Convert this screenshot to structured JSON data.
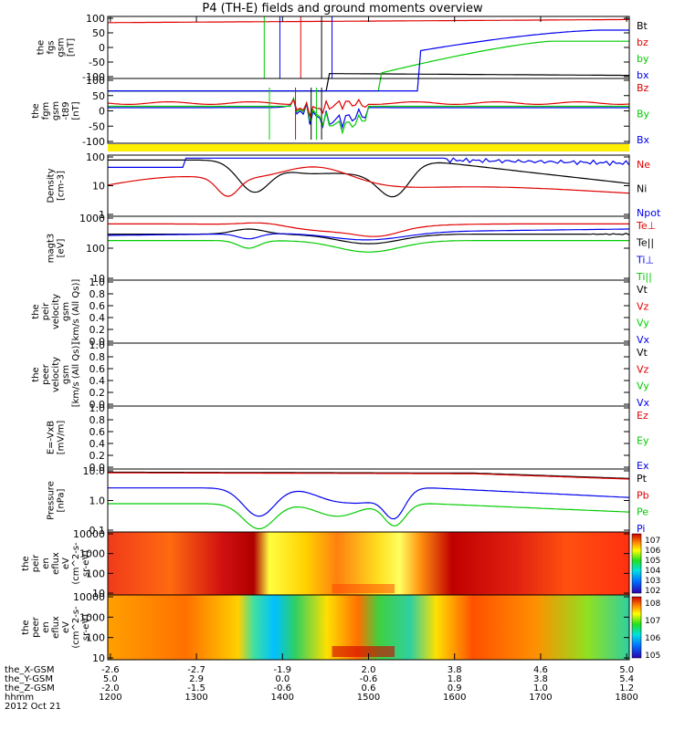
{
  "title": "P4 (TH-E) fields and ground moments overview",
  "colors": {
    "black": "#000000",
    "red": "#e00000",
    "green": "#00cc00",
    "blue": "#0000ee",
    "yellow": "#ffee00"
  },
  "chart_data": [
    {
      "type": "line",
      "panel": "fgs",
      "ylabel": [
        "the",
        "fgs",
        "gsm",
        "[nT]"
      ],
      "yticks": [
        "100",
        "50",
        "0",
        "-50",
        "-100"
      ],
      "ylim": [
        -100,
        100
      ],
      "legend": [
        {
          "label": "Bt",
          "color": "black"
        },
        {
          "label": "bz",
          "color": "red"
        },
        {
          "label": "by",
          "color": "green"
        },
        {
          "label": "bx",
          "color": "blue"
        }
      ]
    },
    {
      "type": "line",
      "panel": "fgm",
      "ylabel": [
        "the",
        "fgm",
        "gsm",
        "-t89",
        "[nT]"
      ],
      "yticks": [
        "100",
        "50",
        "0",
        "-50",
        "-100"
      ],
      "ylim": [
        -130,
        110
      ],
      "legend": [
        {
          "label": "Bz",
          "color": "red"
        },
        {
          "label": "By",
          "color": "green"
        },
        {
          "label": "Bx",
          "color": "blue"
        }
      ]
    },
    {
      "type": "line",
      "panel": "density",
      "ylabel": [
        "Density",
        "[cm-3]"
      ],
      "yticks": [
        "100",
        "10",
        "1"
      ],
      "legend": [
        {
          "label": "Ne",
          "color": "red"
        },
        {
          "label": "Ni",
          "color": "black"
        },
        {
          "label": "Npot",
          "color": "blue"
        }
      ]
    },
    {
      "type": "line",
      "panel": "temperature",
      "ylabel": [
        "magt3",
        "[eV]"
      ],
      "yticks": [
        "1000",
        "100",
        "10"
      ],
      "legend": [
        {
          "label": "Te⊥",
          "color": "red"
        },
        {
          "label": "Te||",
          "color": "black"
        },
        {
          "label": "Ti⊥",
          "color": "blue"
        },
        {
          "label": "Ti||",
          "color": "green"
        }
      ]
    },
    {
      "type": "line",
      "panel": "peir_velocity",
      "ylabel": [
        "the",
        "peir",
        "velocity",
        "gsm",
        "[km/s (All Qs)]"
      ],
      "yticks": [
        "1.0",
        "0.8",
        "0.6",
        "0.4",
        "0.2",
        "0.0"
      ],
      "legend": [
        {
          "label": "Vt",
          "color": "black"
        },
        {
          "label": "Vz",
          "color": "red"
        },
        {
          "label": "Vy",
          "color": "green"
        },
        {
          "label": "Vx",
          "color": "blue"
        }
      ]
    },
    {
      "type": "line",
      "panel": "peer_velocity",
      "ylabel": [
        "the",
        "peer",
        "velocity",
        "gsm",
        "[km/s (All Qs)]"
      ],
      "yticks": [
        "1.0",
        "0.8",
        "0.6",
        "0.4",
        "0.2",
        "0.0"
      ],
      "legend": [
        {
          "label": "Vt",
          "color": "black"
        },
        {
          "label": "Vz",
          "color": "red"
        },
        {
          "label": "Vy",
          "color": "green"
        },
        {
          "label": "Vx",
          "color": "blue"
        }
      ]
    },
    {
      "type": "line",
      "panel": "efield",
      "ylabel": [
        "E=-VxB",
        "[mV/m]"
      ],
      "yticks": [
        "1.0",
        "0.8",
        "0.6",
        "0.4",
        "0.2",
        "0.0"
      ],
      "legend": [
        {
          "label": "Ez",
          "color": "red"
        },
        {
          "label": "Ey",
          "color": "green"
        },
        {
          "label": "Ex",
          "color": "blue"
        }
      ]
    },
    {
      "type": "line",
      "panel": "pressure",
      "ylabel": [
        "Pressure",
        "[nPa]"
      ],
      "yticks": [
        "10.0",
        "1.0",
        "0.1"
      ],
      "legend": [
        {
          "label": "Pt",
          "color": "black"
        },
        {
          "label": "Pb",
          "color": "red"
        },
        {
          "label": "Pe",
          "color": "green"
        },
        {
          "label": "Pi",
          "color": "blue"
        }
      ]
    },
    {
      "type": "heatmap",
      "panel": "peir_eflux",
      "ylabel": [
        "the",
        "peir",
        "en",
        "eflux",
        "eV",
        "(cm^2-s-",
        "sr-eV)"
      ],
      "yticks": [
        "10000",
        "1000",
        "100",
        "10"
      ],
      "colorbar_ticks": [
        "10^7",
        "10^6",
        "10^5",
        "10^4",
        "10^3",
        "10^2"
      ]
    },
    {
      "type": "heatmap",
      "panel": "peer_eflux",
      "ylabel": [
        "the",
        "peer",
        "en",
        "eflux",
        "eV",
        "(cm^2-s-",
        "sr-eV)"
      ],
      "yticks": [
        "10000",
        "1000",
        "100",
        "10"
      ],
      "colorbar_ticks": [
        "10^8",
        "10^7",
        "10^6",
        "10^5"
      ]
    }
  ],
  "xaxis": {
    "rows": [
      {
        "label": "the_X-GSM",
        "values": [
          "-2.6",
          "-2.7",
          "-1.9",
          "2.0",
          "3.8",
          "4.6",
          "5.0"
        ]
      },
      {
        "label": "the_Y-GSM",
        "values": [
          "5.0",
          "2.9",
          "0.0",
          "-0.6",
          "1.8",
          "3.8",
          "5.4"
        ]
      },
      {
        "label": "the_Z-GSM",
        "values": [
          "-2.0",
          "-1.5",
          "-0.6",
          "0.6",
          "0.9",
          "1.0",
          "1.2"
        ]
      },
      {
        "label": "hhmm",
        "values": [
          "1200",
          "1300",
          "1400",
          "1500",
          "1600",
          "1700",
          "1800"
        ]
      }
    ],
    "date": "2012 Oct 21"
  }
}
